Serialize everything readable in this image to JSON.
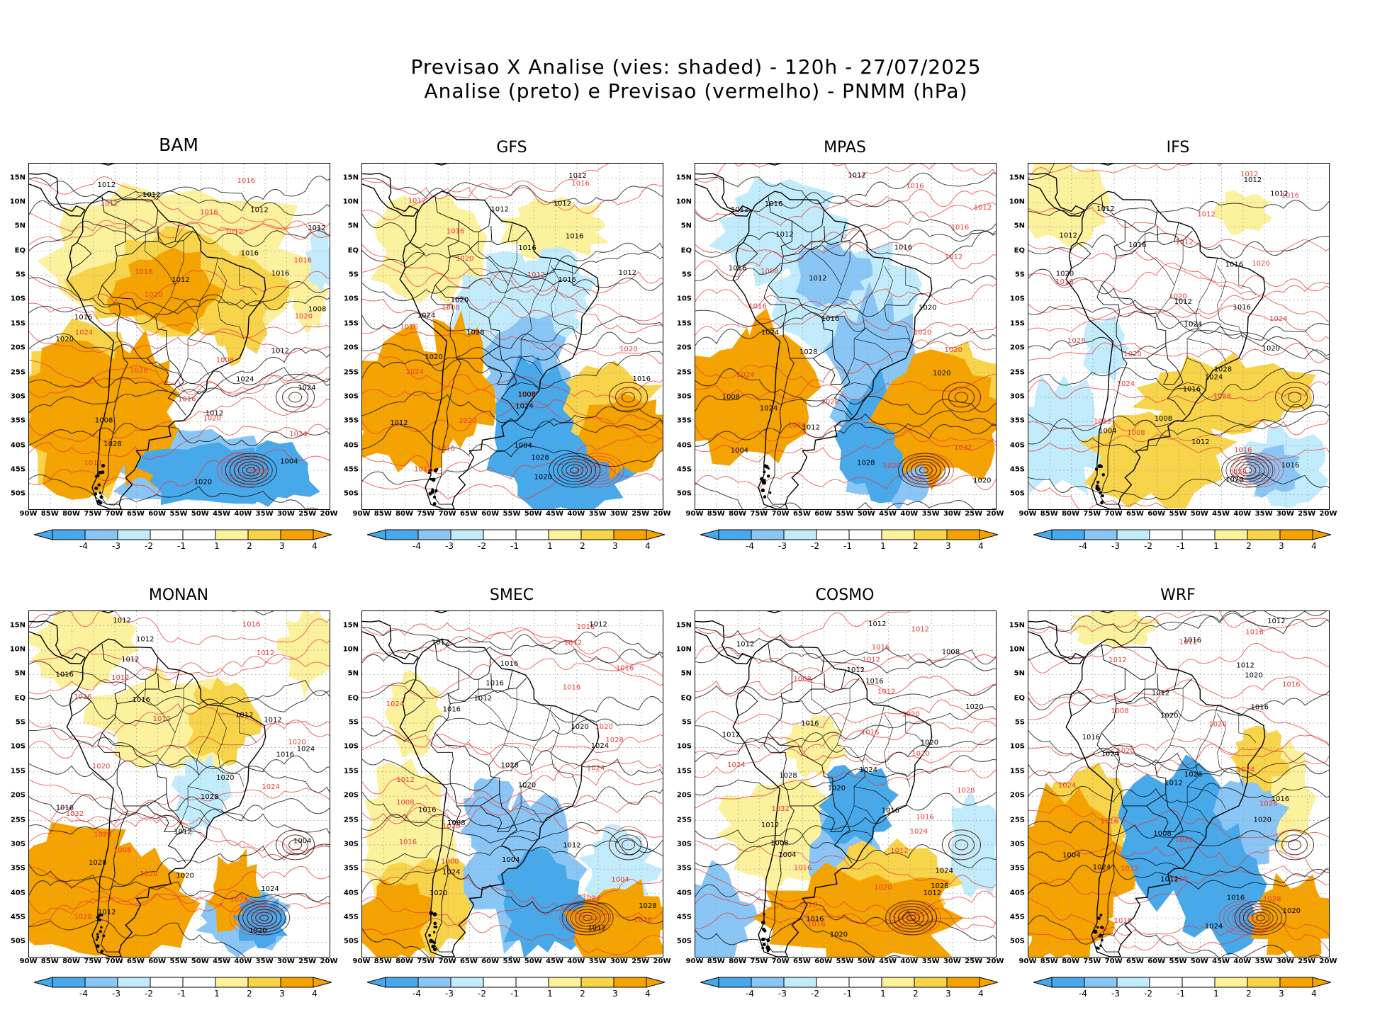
{
  "header": {
    "title_line1": "Previsao X Analise (vies: shaded) - 120h - 27/07/2025",
    "title_line2": "Analise (preto) e Previsao (vermelho) - PNMM (hPa)"
  },
  "colors": {
    "neg4": "#47a8ea",
    "neg3": "#8ac6f5",
    "neg2": "#c2ecfc",
    "neg1": "#ffffff",
    "pos1": "#ffffff",
    "pos2": "#fcf19c",
    "pos3": "#f8d44a",
    "pos4": "#f5a300",
    "analysis_contour": "#000000",
    "forecast_contour": "#e83a3a",
    "grid": "#9a9a9a"
  },
  "axis": {
    "lat_labels": [
      "15N",
      "10N",
      "5N",
      "EQ",
      "5S",
      "10S",
      "15S",
      "20S",
      "25S",
      "30S",
      "35S",
      "40S",
      "45S",
      "50S"
    ],
    "lon_labels": [
      "90W",
      "85W",
      "80W",
      "75W",
      "70W",
      "65W",
      "60W",
      "55W",
      "50W",
      "45W",
      "40W",
      "35W",
      "30W",
      "25W",
      "20W"
    ],
    "lon_labels_cosmo": [
      "90W",
      "85W",
      "80W",
      "75W",
      "70W",
      "65W",
      "60W",
      "55W",
      "50W",
      "45W",
      "40W",
      "35W",
      "30W",
      "25W",
      "20W"
    ]
  },
  "colorbar": {
    "labels": [
      "-4",
      "-3",
      "-2",
      "-1",
      "1",
      "2",
      "3",
      "4"
    ]
  },
  "panels": [
    {
      "name": "BAM",
      "isobars_black": [
        "1012",
        "1012",
        "1012",
        "1012",
        "1016",
        "1016",
        "1012",
        "1008",
        "1016",
        "1020",
        "1012",
        "1024",
        "1024",
        "1012",
        "1008",
        "1028",
        "1004",
        "1020"
      ],
      "isobars_red": [
        "1016",
        "1012",
        "1016",
        "1012",
        "1016",
        "1016",
        "1020",
        "1020",
        "1024",
        "1008",
        "1028",
        "1016",
        "1020",
        "1024",
        "1012",
        "1020"
      ]
    },
    {
      "name": "GFS",
      "isobars_black": [
        "1012",
        "1012",
        "1012",
        "1016",
        "1016",
        "1012",
        "1016",
        "1020",
        "1024",
        "1028",
        "1020",
        "1016",
        "1008",
        "1024",
        "1012",
        "1004",
        "1028",
        "1020"
      ],
      "isobars_red": [
        "1016",
        "1012",
        "1016",
        "1020",
        "1012",
        "1008",
        "1016",
        "1020",
        "1024",
        "1028",
        "1020",
        "1016",
        "1012"
      ]
    },
    {
      "name": "MPAS",
      "isobars_black": [
        "1012",
        "1016",
        "1012",
        "1012",
        "1016",
        "1016",
        "1012",
        "1020",
        "1016",
        "1024",
        "1028",
        "1020",
        "1008",
        "1024",
        "1012",
        "1004",
        "1028",
        "1020"
      ],
      "isobars_red": [
        "1016",
        "1012",
        "1016",
        "1012",
        "1008",
        "1016",
        "1020",
        "1020",
        "1024",
        "1028",
        "1020",
        "1032",
        "1020"
      ]
    },
    {
      "name": "IFS",
      "isobars_black": [
        "1012",
        "1012",
        "1012",
        "1012",
        "1016",
        "1016",
        "1020",
        "1012",
        "1016",
        "1024",
        "1020",
        "1028",
        "1024",
        "1016",
        "1008",
        "1004",
        "1012",
        "1016",
        "1020"
      ],
      "isobars_red": [
        "1012",
        "1016",
        "1012",
        "1012",
        "1020",
        "1016",
        "1020",
        "1024",
        "1028",
        "1020",
        "1024",
        "1028",
        "1012",
        "1008",
        "1016",
        "1020"
      ]
    },
    {
      "name": "MONAN",
      "isobars_black": [
        "1012",
        "1012",
        "1012",
        "1016",
        "1016",
        "1012",
        "1012",
        "1024",
        "1016",
        "1020",
        "1028",
        "1016",
        "1012",
        "1004",
        "1028",
        "1020",
        "1024",
        "1012",
        "1020"
      ],
      "isobars_red": [
        "1016",
        "1012",
        "1012",
        "1016",
        "1012",
        "1020",
        "1020",
        "1024",
        "1032",
        "1028",
        "1008",
        "1020",
        "1024",
        "1028"
      ]
    },
    {
      "name": "SMEC",
      "isobars_black": [
        "1012",
        "1012",
        "1016",
        "1016",
        "1012",
        "1016",
        "1020",
        "1024",
        "1028",
        "1020",
        "1016",
        "1008",
        "1012",
        "1004",
        "1024",
        "1020",
        "1028",
        "1012"
      ],
      "isobars_red": [
        "1016",
        "1012",
        "1016",
        "1016",
        "1024",
        "1020",
        "1028",
        "1024",
        "1012",
        "1008",
        "1020",
        "1016",
        "1000",
        "1004",
        "1024",
        "1016"
      ]
    },
    {
      "name": "COSMO",
      "isobars_black": [
        "1012",
        "1012",
        "1008",
        "1012",
        "1016",
        "1020",
        "1016",
        "1012",
        "1020",
        "1024",
        "1028",
        "1020",
        "1016",
        "1012",
        "1008",
        "1004",
        "1024",
        "1028",
        "1012",
        "1016",
        "1020"
      ],
      "isobars_red": [
        "1012",
        "1016",
        "1012",
        "1008",
        "1012",
        "1020",
        "1016",
        "1020",
        "1024",
        "1028",
        "1032",
        "1016",
        "1024",
        "1012",
        "1016",
        "1020",
        "1028",
        "1016"
      ]
    },
    {
      "name": "WRF",
      "isobars_black": [
        "1012",
        "1016",
        "1012",
        "1020",
        "1012",
        "1016",
        "1020",
        "1016",
        "1024",
        "1028",
        "1012",
        "1016",
        "1020",
        "1008",
        "1004",
        "1024",
        "1012",
        "1016",
        "1020",
        "1024"
      ],
      "isobars_red": [
        "1016",
        "1012",
        "1012",
        "1016",
        "1008",
        "1020",
        "1020",
        "1024",
        "1024",
        "1028",
        "1016",
        "1020",
        "1012",
        "1020",
        "1028",
        "1016"
      ]
    }
  ]
}
